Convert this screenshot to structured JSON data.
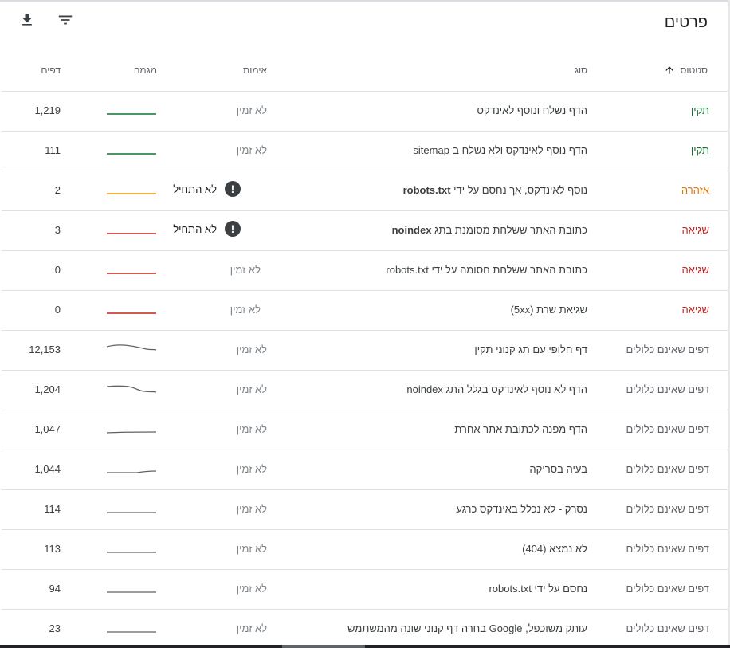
{
  "header": {
    "title": "פרטים"
  },
  "toolbar": {
    "download_icon": "download-icon",
    "filter_icon": "filter-icon"
  },
  "columns": {
    "status": "סטטוס",
    "type": "סוג",
    "validation": "אימות",
    "trend": "מגמה",
    "pages": "דפים"
  },
  "colors": {
    "valid": "#137333",
    "warning": "#e37400",
    "error": "#c5221f",
    "excluded": "#5f6368"
  },
  "rows": [
    {
      "status": "תקין",
      "status_kind": "valid",
      "type": "הדף נשלח ונוסף לאינדקס",
      "validation": "לא זמין",
      "pages": "1,219"
    },
    {
      "status": "תקין",
      "status_kind": "valid",
      "type": "הדף נוסף לאינדקס ולא נשלח ב-sitemap",
      "validation": "לא זמין",
      "pages": "111"
    },
    {
      "status": "אזהרה",
      "status_kind": "warning",
      "type_bold": "robots.txt",
      "type_pre": "נוסף לאינדקס, אך נחסם על ידי ",
      "validation": "לא התחיל",
      "pages": "2"
    },
    {
      "status": "שגיאה",
      "status_kind": "error",
      "type_bold": "noindex",
      "type_pre": "כתובת האתר ששלחת מסומנת בתג ",
      "validation": "לא התחיל",
      "pages": "3"
    },
    {
      "status": "שגיאה",
      "status_kind": "error",
      "type": "כתובת האתר ששלחת חסומה על ידי robots.txt",
      "validation": "לא זמין",
      "pages": "0"
    },
    {
      "status": "שגיאה",
      "status_kind": "error",
      "type": "שגיאת שרת (5xx)",
      "validation": "לא זמין",
      "pages": "0"
    },
    {
      "status": "דפים שאינם כלולים",
      "status_kind": "excluded",
      "type": "דף חלופי עם תג קנוני תקין",
      "validation": "לא זמין",
      "pages": "12,153"
    },
    {
      "status": "דפים שאינם כלולים",
      "status_kind": "excluded",
      "type": "הדף לא נוסף לאינדקס בגלל התג noindex",
      "validation": "לא זמין",
      "pages": "1,204"
    },
    {
      "status": "דפים שאינם כלולים",
      "status_kind": "excluded",
      "type": "הדף מפנה לכתובת אתר אחרת",
      "validation": "לא זמין",
      "pages": "1,047"
    },
    {
      "status": "דפים שאינם כלולים",
      "status_kind": "excluded",
      "type": "בעיה בסריקה",
      "validation": "לא זמין",
      "pages": "1,044"
    },
    {
      "status": "דפים שאינם כלולים",
      "status_kind": "excluded",
      "type": "נסרק - לא נכלל באינדקס כרגע",
      "validation": "לא זמין",
      "pages": "114"
    },
    {
      "status": "דפים שאינם כלולים",
      "status_kind": "excluded",
      "type": "לא נמצא (404)",
      "validation": "לא זמין",
      "pages": "113"
    },
    {
      "status": "דפים שאינם כלולים",
      "status_kind": "excluded",
      "type": "נחסם על ידי robots.txt",
      "validation": "לא זמין",
      "pages": "94"
    },
    {
      "status": "דפים שאינם כלולים",
      "status_kind": "excluded",
      "type": "עותק משוכפל, Google בחרה דף קנוני שונה מהמשתמש",
      "validation": "לא זמין",
      "pages": "23"
    }
  ]
}
